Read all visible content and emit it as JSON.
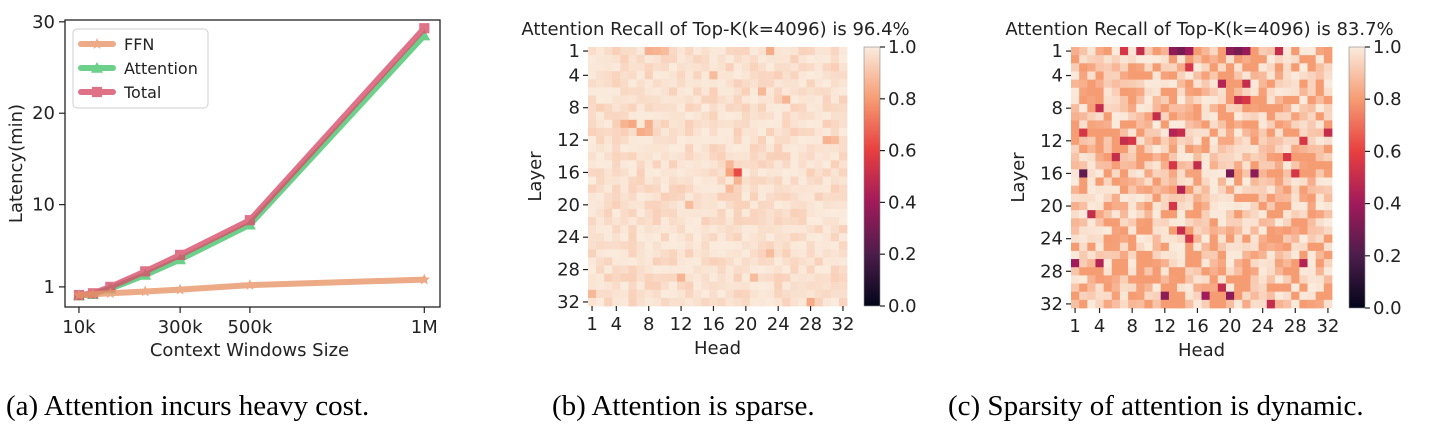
{
  "chart_data": [
    {
      "type": "line",
      "title": "",
      "xlabel": "Context Windows Size",
      "ylabel": "Latency(min)",
      "x_ticks": [
        {
          "value": 10,
          "label": "10k"
        },
        {
          "value": 300,
          "label": "300k"
        },
        {
          "value": 500,
          "label": "500k"
        },
        {
          "value": 1000,
          "label": "1M"
        }
      ],
      "y_ticks": [
        {
          "value": 1,
          "label": "1"
        },
        {
          "value": 10,
          "label": "10"
        },
        {
          "value": 20,
          "label": "20"
        },
        {
          "value": 30,
          "label": "30"
        }
      ],
      "xlim": [
        -30,
        1045
      ],
      "ylim": [
        -1.2,
        30.2
      ],
      "legend_position": "top-left",
      "x": [
        10,
        50,
        100,
        200,
        300,
        500,
        1000
      ],
      "series": [
        {
          "name": "FFN",
          "color": "#e8956a",
          "marker": "star",
          "values": [
            0.1,
            0.2,
            0.3,
            0.5,
            0.7,
            1.2,
            1.8
          ]
        },
        {
          "name": "Attention",
          "color": "#48c46e",
          "marker": "triangle",
          "values": [
            0.05,
            0.2,
            0.8,
            2.3,
            4.0,
            7.8,
            28.5
          ]
        },
        {
          "name": "Total",
          "color": "#d94f6b",
          "marker": "square",
          "values": [
            0.1,
            0.3,
            1.0,
            2.7,
            4.5,
            8.3,
            29.3
          ]
        }
      ]
    },
    {
      "type": "heatmap",
      "title": "Attention Recall of Top-K(k=4096) is 96.4%",
      "xlabel": "Head",
      "ylabel": "Layer",
      "rows": 32,
      "cols": 32,
      "x_ticks": [
        "1",
        "4",
        "8",
        "12",
        "16",
        "20",
        "24",
        "28",
        "32"
      ],
      "y_ticks": [
        "1",
        "4",
        "8",
        "12",
        "16",
        "20",
        "24",
        "28",
        "32"
      ],
      "colorbar_ticks": [
        "0.0",
        "0.2",
        "0.4",
        "0.6",
        "0.8",
        "1.0"
      ],
      "colorbar_range": [
        0,
        1
      ],
      "overall_recall": 0.964,
      "mean_value": 0.964,
      "low_cells": [
        {
          "layer": 1,
          "head": 8,
          "value": 0.85
        },
        {
          "layer": 1,
          "head": 9,
          "value": 0.86
        },
        {
          "layer": 1,
          "head": 23,
          "value": 0.84
        },
        {
          "layer": 1,
          "head": 10,
          "value": 0.88
        },
        {
          "layer": 4,
          "head": 16,
          "value": 0.88
        },
        {
          "layer": 6,
          "head": 22,
          "value": 0.87
        },
        {
          "layer": 7,
          "head": 25,
          "value": 0.86
        },
        {
          "layer": 10,
          "head": 5,
          "value": 0.86
        },
        {
          "layer": 10,
          "head": 6,
          "value": 0.83
        },
        {
          "layer": 10,
          "head": 8,
          "value": 0.85
        },
        {
          "layer": 11,
          "head": 7,
          "value": 0.84
        },
        {
          "layer": 11,
          "head": 8,
          "value": 0.86
        },
        {
          "layer": 12,
          "head": 30,
          "value": 0.86
        },
        {
          "layer": 12,
          "head": 31,
          "value": 0.88
        },
        {
          "layer": 15,
          "head": 18,
          "value": 0.87
        },
        {
          "layer": 16,
          "head": 19,
          "value": 0.62
        },
        {
          "layer": 16,
          "head": 18,
          "value": 0.82
        },
        {
          "layer": 17,
          "head": 19,
          "value": 0.86
        },
        {
          "layer": 18,
          "head": 18,
          "value": 0.88
        },
        {
          "layer": 20,
          "head": 13,
          "value": 0.88
        },
        {
          "layer": 26,
          "head": 23,
          "value": 0.88
        },
        {
          "layer": 29,
          "head": 12,
          "value": 0.86
        },
        {
          "layer": 29,
          "head": 21,
          "value": 0.88
        },
        {
          "layer": 31,
          "head": 1,
          "value": 0.87
        },
        {
          "layer": 32,
          "head": 28,
          "value": 0.84
        }
      ]
    },
    {
      "type": "heatmap",
      "title": "Attention Recall of Top-K(k=4096) is 83.7%",
      "xlabel": "Head",
      "ylabel": "Layer",
      "rows": 32,
      "cols": 32,
      "x_ticks": [
        "1",
        "4",
        "8",
        "12",
        "16",
        "20",
        "24",
        "28",
        "32"
      ],
      "y_ticks": [
        "1",
        "4",
        "8",
        "12",
        "16",
        "20",
        "24",
        "28",
        "32"
      ],
      "colorbar_ticks": [
        "0.0",
        "0.2",
        "0.4",
        "0.6",
        "0.8",
        "1.0"
      ],
      "colorbar_range": [
        0,
        1
      ],
      "overall_recall": 0.837,
      "mean_value": 0.837,
      "low_cells": [
        {
          "layer": 1,
          "head": 13,
          "value": 0.35
        },
        {
          "layer": 1,
          "head": 14,
          "value": 0.3
        },
        {
          "layer": 1,
          "head": 15,
          "value": 0.4
        },
        {
          "layer": 1,
          "head": 20,
          "value": 0.35
        },
        {
          "layer": 1,
          "head": 21,
          "value": 0.3
        },
        {
          "layer": 1,
          "head": 22,
          "value": 0.38
        },
        {
          "layer": 1,
          "head": 7,
          "value": 0.55
        },
        {
          "layer": 1,
          "head": 9,
          "value": 0.5
        },
        {
          "layer": 1,
          "head": 26,
          "value": 0.5
        },
        {
          "layer": 3,
          "head": 15,
          "value": 0.55
        },
        {
          "layer": 5,
          "head": 19,
          "value": 0.45
        },
        {
          "layer": 5,
          "head": 22,
          "value": 0.5
        },
        {
          "layer": 7,
          "head": 21,
          "value": 0.5
        },
        {
          "layer": 7,
          "head": 22,
          "value": 0.55
        },
        {
          "layer": 8,
          "head": 4,
          "value": 0.5
        },
        {
          "layer": 9,
          "head": 11,
          "value": 0.5
        },
        {
          "layer": 11,
          "head": 2,
          "value": 0.55
        },
        {
          "layer": 11,
          "head": 13,
          "value": 0.45
        },
        {
          "layer": 11,
          "head": 14,
          "value": 0.5
        },
        {
          "layer": 11,
          "head": 32,
          "value": 0.5
        },
        {
          "layer": 12,
          "head": 7,
          "value": 0.5
        },
        {
          "layer": 12,
          "head": 8,
          "value": 0.55
        },
        {
          "layer": 12,
          "head": 29,
          "value": 0.55
        },
        {
          "layer": 14,
          "head": 6,
          "value": 0.5
        },
        {
          "layer": 14,
          "head": 27,
          "value": 0.55
        },
        {
          "layer": 15,
          "head": 13,
          "value": 0.55
        },
        {
          "layer": 15,
          "head": 16,
          "value": 0.5
        },
        {
          "layer": 16,
          "head": 2,
          "value": 0.25
        },
        {
          "layer": 16,
          "head": 20,
          "value": 0.3
        },
        {
          "layer": 16,
          "head": 23,
          "value": 0.35
        },
        {
          "layer": 16,
          "head": 28,
          "value": 0.55
        },
        {
          "layer": 18,
          "head": 14,
          "value": 0.45
        },
        {
          "layer": 20,
          "head": 13,
          "value": 0.55
        },
        {
          "layer": 21,
          "head": 3,
          "value": 0.5
        },
        {
          "layer": 23,
          "head": 14,
          "value": 0.5
        },
        {
          "layer": 24,
          "head": 15,
          "value": 0.55
        },
        {
          "layer": 27,
          "head": 1,
          "value": 0.4
        },
        {
          "layer": 27,
          "head": 4,
          "value": 0.45
        },
        {
          "layer": 27,
          "head": 29,
          "value": 0.45
        },
        {
          "layer": 30,
          "head": 19,
          "value": 0.5
        },
        {
          "layer": 31,
          "head": 12,
          "value": 0.35
        },
        {
          "layer": 31,
          "head": 17,
          "value": 0.4
        },
        {
          "layer": 31,
          "head": 20,
          "value": 0.35
        },
        {
          "layer": 32,
          "head": 25,
          "value": 0.5
        }
      ]
    }
  ],
  "captions": {
    "a": "(a) Attention incurs heavy cost.",
    "b": "(b) Attention is sparse.",
    "c": "(c) Sparsity of attention is dynamic."
  }
}
